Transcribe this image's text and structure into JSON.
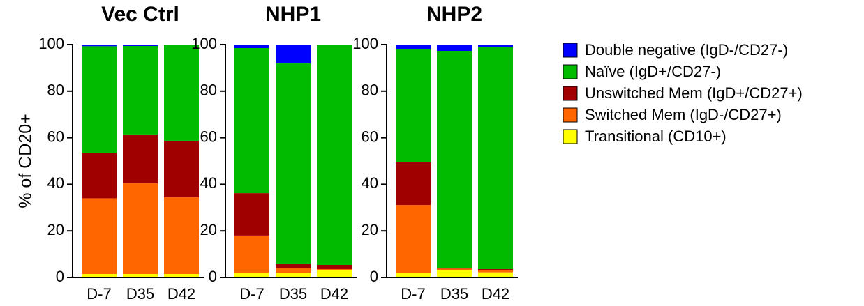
{
  "chart_data": [
    {
      "type": "stacked_bar",
      "title": "Vec Ctrl",
      "y_label": "% of CD20+",
      "categories": [
        "D-7",
        "D35",
        "D42"
      ],
      "ylim": [
        0,
        100
      ],
      "yticks": [
        0,
        20,
        40,
        60,
        80,
        100
      ],
      "series": [
        {
          "name": "Transitional (CD10+)",
          "color": "#ffff00",
          "values": [
            1.5,
            1.5,
            1.5
          ]
        },
        {
          "name": "Switched Mem (IgD-/CD27+)",
          "color": "#ff6600",
          "values": [
            32.5,
            38.9,
            32.9
          ]
        },
        {
          "name": "Unswitched Mem (IgD+/CD27+)",
          "color": "#a00000",
          "values": [
            19.3,
            21,
            24.3
          ]
        },
        {
          "name": "Naïve (IgD+/CD27-)",
          "color": "#00bb00",
          "values": [
            46,
            38,
            41
          ]
        },
        {
          "name": "Double negative (IgD-/CD27-)",
          "color": "#0000ff",
          "values": [
            0.6,
            0.6,
            0.3
          ]
        }
      ]
    },
    {
      "type": "stacked_bar",
      "title": "NHP1",
      "categories": [
        "D-7",
        "D35",
        "D42"
      ],
      "ylim": [
        0,
        100
      ],
      "yticks": [
        0,
        20,
        40,
        60,
        80,
        100
      ],
      "series": [
        {
          "color": "#ffff00",
          "values": [
            2,
            2,
            3
          ]
        },
        {
          "color": "#ff6600",
          "values": [
            16,
            1.9,
            0.6
          ]
        },
        {
          "color": "#a00000",
          "values": [
            18.2,
            1.8,
            1.8
          ]
        },
        {
          "color": "#00bb00",
          "values": [
            62.3,
            86.2,
            94.3
          ]
        },
        {
          "color": "#0000ff",
          "values": [
            1.5,
            8.1,
            0.3
          ]
        }
      ]
    },
    {
      "type": "stacked_bar",
      "title": "NHP2",
      "categories": [
        "D-7",
        "D35",
        "D42"
      ],
      "ylim": [
        0,
        100
      ],
      "yticks": [
        0,
        20,
        40,
        60,
        80,
        100
      ],
      "series": [
        {
          "color": "#ffff00",
          "values": [
            1.8,
            3.2,
            2.2
          ]
        },
        {
          "color": "#ff6600",
          "values": [
            29.3,
            0.6,
            0.8
          ]
        },
        {
          "color": "#a00000",
          "values": [
            18.3,
            0.2,
            0.6
          ]
        },
        {
          "color": "#00bb00",
          "values": [
            48.5,
            93.3,
            95.2
          ]
        },
        {
          "color": "#0000ff",
          "values": [
            2.1,
            2.7,
            1.2
          ]
        }
      ]
    }
  ]
}
